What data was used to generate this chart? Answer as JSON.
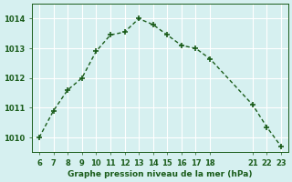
{
  "x": [
    6,
    7,
    8,
    9,
    10,
    11,
    12,
    13,
    14,
    15,
    16,
    17,
    18,
    21,
    22,
    23
  ],
  "y": [
    1010.0,
    1010.9,
    1011.6,
    1012.0,
    1012.9,
    1013.45,
    1013.55,
    1014.0,
    1013.8,
    1013.45,
    1013.1,
    1013.0,
    1012.65,
    1011.1,
    1010.35,
    1009.7
  ],
  "title": "Graphe pression niveau de la mer (hPa)",
  "xlim": [
    5.5,
    23.5
  ],
  "ylim": [
    1009.5,
    1014.5
  ],
  "yticks": [
    1010,
    1011,
    1012,
    1013,
    1014
  ],
  "xticks": [
    6,
    7,
    8,
    9,
    10,
    11,
    12,
    13,
    14,
    15,
    16,
    17,
    18,
    21,
    22,
    23
  ],
  "line_color": "#1a5c1a",
  "marker_color": "#1a5c1a",
  "bg_color": "#d6f0f0",
  "grid_color": "#ffffff",
  "text_color": "#1a5c1a",
  "title_color": "#1a5c1a"
}
